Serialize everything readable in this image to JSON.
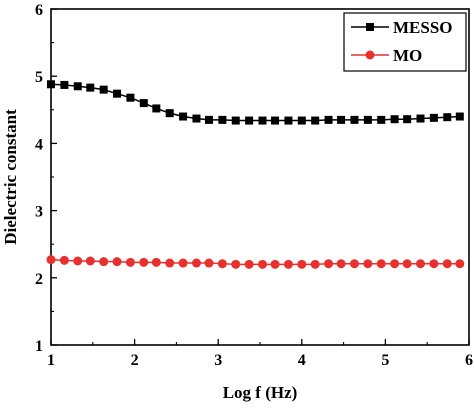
{
  "chart_data": {
    "type": "line",
    "title": "",
    "xlabel": "Log f (Hz)",
    "ylabel": "Dielectric constant",
    "xlim": [
      1,
      6
    ],
    "ylim": [
      1,
      6
    ],
    "xticks": [
      1,
      2,
      3,
      4,
      5,
      6
    ],
    "yticks": [
      1,
      2,
      3,
      4,
      5,
      6
    ],
    "grid": false,
    "legend": {
      "position": "top-right"
    },
    "series": [
      {
        "name": "MESSO",
        "color": "#000000",
        "marker": "square",
        "x": [
          1.0,
          1.16,
          1.32,
          1.47,
          1.63,
          1.79,
          1.95,
          2.11,
          2.26,
          2.42,
          2.58,
          2.74,
          2.89,
          3.05,
          3.21,
          3.37,
          3.53,
          3.68,
          3.84,
          4.0,
          4.16,
          4.32,
          4.47,
          4.63,
          4.79,
          4.95,
          5.11,
          5.26,
          5.42,
          5.58,
          5.74,
          5.89
        ],
        "y": [
          4.88,
          4.87,
          4.85,
          4.83,
          4.8,
          4.74,
          4.68,
          4.6,
          4.52,
          4.45,
          4.4,
          4.37,
          4.35,
          4.35,
          4.34,
          4.34,
          4.34,
          4.34,
          4.34,
          4.34,
          4.34,
          4.35,
          4.35,
          4.35,
          4.35,
          4.35,
          4.36,
          4.36,
          4.37,
          4.38,
          4.39,
          4.4
        ]
      },
      {
        "name": "MO",
        "color": "#e8302e",
        "marker": "circle",
        "x": [
          1.0,
          1.16,
          1.32,
          1.47,
          1.63,
          1.79,
          1.95,
          2.11,
          2.26,
          2.42,
          2.58,
          2.74,
          2.89,
          3.05,
          3.21,
          3.37,
          3.53,
          3.68,
          3.84,
          4.0,
          4.16,
          4.32,
          4.47,
          4.63,
          4.79,
          4.95,
          5.11,
          5.26,
          5.42,
          5.58,
          5.74,
          5.89
        ],
        "y": [
          2.27,
          2.26,
          2.25,
          2.25,
          2.24,
          2.24,
          2.23,
          2.23,
          2.23,
          2.22,
          2.22,
          2.22,
          2.22,
          2.21,
          2.2,
          2.2,
          2.2,
          2.2,
          2.2,
          2.2,
          2.2,
          2.21,
          2.21,
          2.21,
          2.21,
          2.21,
          2.21,
          2.21,
          2.21,
          2.21,
          2.21,
          2.21
        ]
      }
    ]
  }
}
